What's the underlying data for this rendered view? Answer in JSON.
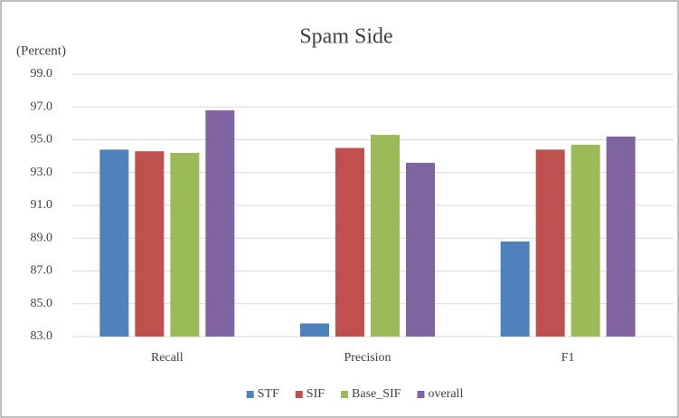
{
  "chart_data": {
    "type": "bar",
    "title": "Spam Side",
    "y_label": "(Percent)",
    "categories": [
      "Recall",
      "Precision",
      "F1"
    ],
    "series": [
      {
        "name": "STF",
        "color": "#4f81bd",
        "values": [
          94.4,
          83.8,
          88.8
        ]
      },
      {
        "name": "SIF",
        "color": "#c0504d",
        "values": [
          94.3,
          94.5,
          94.4
        ]
      },
      {
        "name": "Base_SIF",
        "color": "#9bbb59",
        "values": [
          94.2,
          95.3,
          94.7
        ]
      },
      {
        "name": "overall",
        "color": "#8064a2",
        "values": [
          96.8,
          93.6,
          95.2
        ]
      }
    ],
    "ylim": [
      83,
      99
    ],
    "yticks": [
      {
        "value": 83,
        "label": "83.0"
      },
      {
        "value": 85,
        "label": "85.0"
      },
      {
        "value": 87,
        "label": "87.0"
      },
      {
        "value": 89,
        "label": "89.0"
      },
      {
        "value": 91,
        "label": "91.0"
      },
      {
        "value": 93,
        "label": "93.0"
      },
      {
        "value": 95,
        "label": "95.0"
      },
      {
        "value": 97,
        "label": "97.0"
      },
      {
        "value": 99,
        "label": "99.0"
      }
    ],
    "grid": true,
    "legend": "bottom"
  }
}
